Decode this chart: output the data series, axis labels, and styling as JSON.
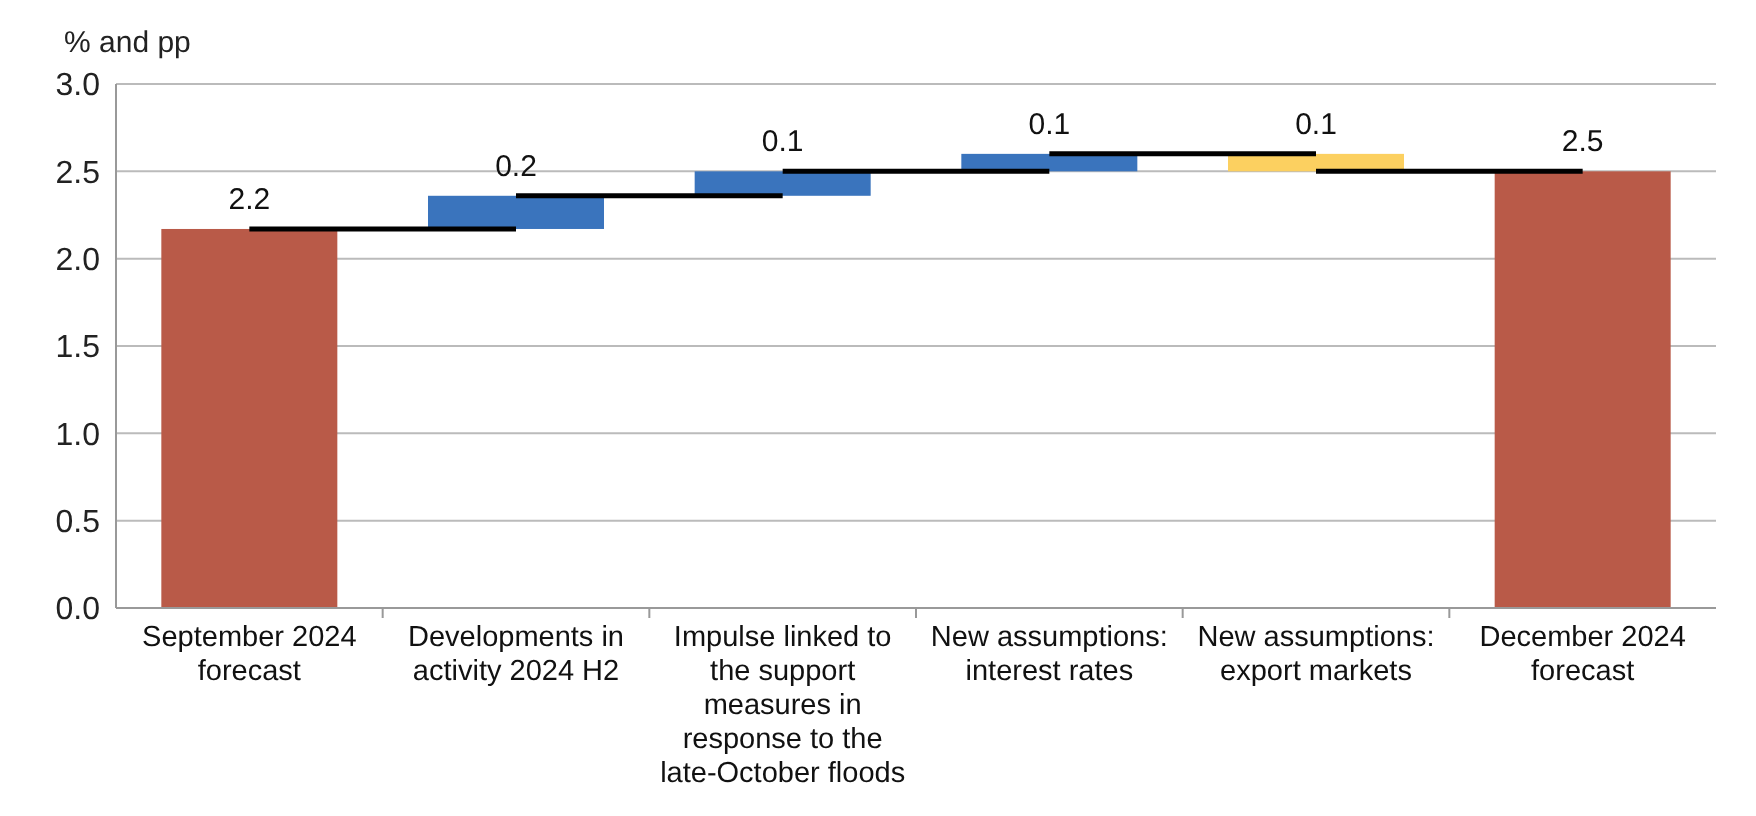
{
  "chart_data": {
    "type": "bar",
    "ylabel": "% and pp",
    "categories": [
      "September 2024 forecast",
      "Developments in activity 2024 H2",
      "Impulse linked to the support measures in response to the late-October floods",
      "New assumptions: interest rates",
      "New assumptions: export markets",
      "December 2024 forecast"
    ],
    "values": [
      2.17,
      0.19,
      0.14,
      0.1,
      -0.1,
      2.5
    ],
    "base": [
      0,
      2.17,
      2.36,
      2.5,
      2.6,
      0
    ],
    "colors": [
      "#b95a48",
      "#3a74bd",
      "#3a74bd",
      "#3a74bd",
      "#fcd060",
      "#b95a48"
    ],
    "value_labels": [
      "2.2",
      "0.2",
      "0.1",
      "0.1",
      "0.1",
      "2.5"
    ],
    "ylim": [
      0,
      3
    ],
    "yticks": [
      {
        "value": 0,
        "label": "0.0"
      },
      {
        "value": 0.5,
        "label": "0.5"
      },
      {
        "value": 1,
        "label": "1.0"
      },
      {
        "value": 1.5,
        "label": "1.5"
      },
      {
        "value": 2,
        "label": "2.0"
      },
      {
        "value": 2.5,
        "label": "2.5"
      },
      {
        "value": 3,
        "label": "3.0"
      }
    ],
    "grid": "y"
  }
}
